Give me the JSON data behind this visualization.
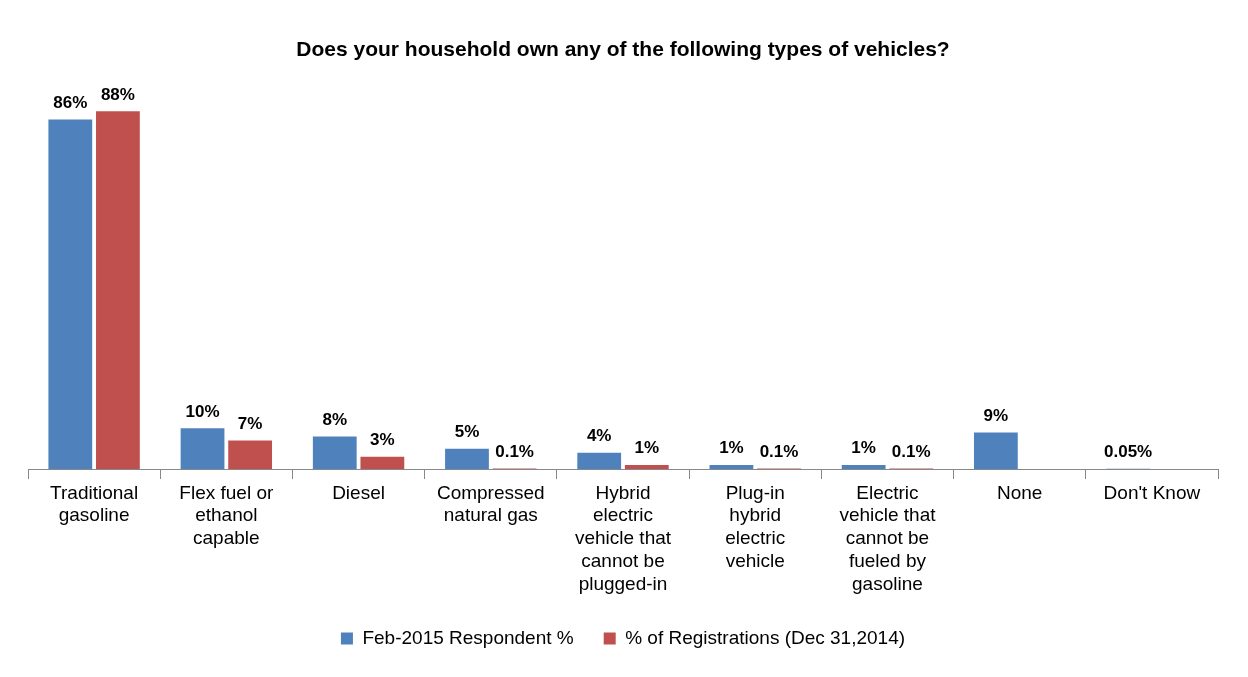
{
  "chart_data": {
    "type": "bar",
    "title": "Does your household own any of the following types of vehicles?",
    "categories": [
      "Traditional gasoline",
      "Flex fuel or ethanol capable",
      "Diesel",
      "Compressed natural gas",
      "Hybrid electric vehicle that cannot be plugged-in",
      "Plug-in hybrid electric vehicle",
      "Electric vehicle that cannot be fueled by gasoline",
      "None",
      "Don't Know"
    ],
    "series": [
      {
        "name": "Feb-2015 Respondent %",
        "color": "#4f81bd",
        "values": [
          86,
          10,
          8,
          5,
          4,
          1,
          1,
          9,
          0.05
        ],
        "value_labels": [
          "86%",
          "10%",
          "8%",
          "5%",
          "4%",
          "1%",
          "1%",
          "9%",
          "0.05%"
        ]
      },
      {
        "name": "% of Registrations (Dec 31,2014)",
        "color": "#c0504d",
        "values": [
          88,
          7,
          3,
          0.1,
          1,
          0.1,
          0.1,
          null,
          null
        ],
        "value_labels": [
          "88%",
          "7%",
          "3%",
          "0.1%",
          "1%",
          "0.1%",
          "0.1%",
          null,
          null
        ]
      }
    ],
    "legend": "bottom",
    "grid": false
  }
}
